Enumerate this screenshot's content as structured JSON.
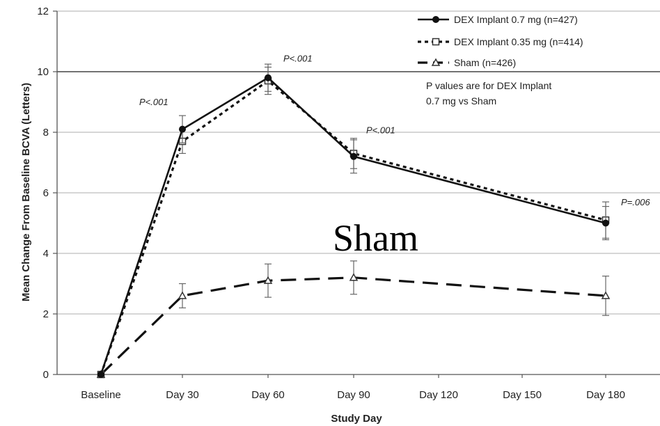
{
  "chart_data": {
    "type": "line",
    "xlabel": "Study Day",
    "ylabel": "Mean Change From Baseline BCVA (Letters)",
    "categories": [
      "Baseline",
      "Day 30",
      "Day 60",
      "Day 90",
      "Day 120",
      "Day 150",
      "Day 180"
    ],
    "ylim": [
      0,
      12
    ],
    "yticks": [
      0,
      2,
      4,
      6,
      8,
      10,
      12
    ],
    "grid": "horizontal",
    "legend_position": "top-right",
    "series": [
      {
        "name": "DEX Implant 0.7 mg (n=427)",
        "style": "solid",
        "marker": "filled-circle",
        "color": "#111111",
        "x": [
          "Baseline",
          "Day 30",
          "Day 60",
          "Day 90",
          "Day 180"
        ],
        "values": [
          0,
          8.1,
          9.8,
          7.2,
          5.0
        ],
        "error": [
          0,
          0.45,
          0.45,
          0.55,
          0.55
        ]
      },
      {
        "name": "DEX Implant 0.35 mg (n=414)",
        "style": "dotted",
        "marker": "open-square",
        "color": "#111111",
        "x": [
          "Baseline",
          "Day 30",
          "Day 60",
          "Day 90",
          "Day 180"
        ],
        "values": [
          0,
          7.7,
          9.7,
          7.3,
          5.1
        ],
        "error": [
          0,
          0.4,
          0.45,
          0.5,
          0.6
        ]
      },
      {
        "name": "Sham (n=426)",
        "style": "dashed",
        "marker": "open-triangle",
        "color": "#111111",
        "x": [
          "Baseline",
          "Day 30",
          "Day 60",
          "Day 90",
          "Day 180"
        ],
        "values": [
          0,
          2.6,
          3.1,
          3.2,
          2.6
        ],
        "error": [
          0,
          0.4,
          0.55,
          0.55,
          0.65
        ]
      }
    ],
    "annotations": [
      {
        "text": "P<.001",
        "x": "Day 30",
        "y": 8.9
      },
      {
        "text": "P<.001",
        "x": "Day 60",
        "y": 10.1
      },
      {
        "text": "P<.001",
        "x": "Day 90",
        "y": 7.9
      },
      {
        "text": "P=.006",
        "x": "Day 180",
        "y": 5.7
      }
    ],
    "note": {
      "line1": "P values are for DEX Implant",
      "line2": "0.7 mg vs Sham"
    },
    "overlay_label": "Sham"
  }
}
